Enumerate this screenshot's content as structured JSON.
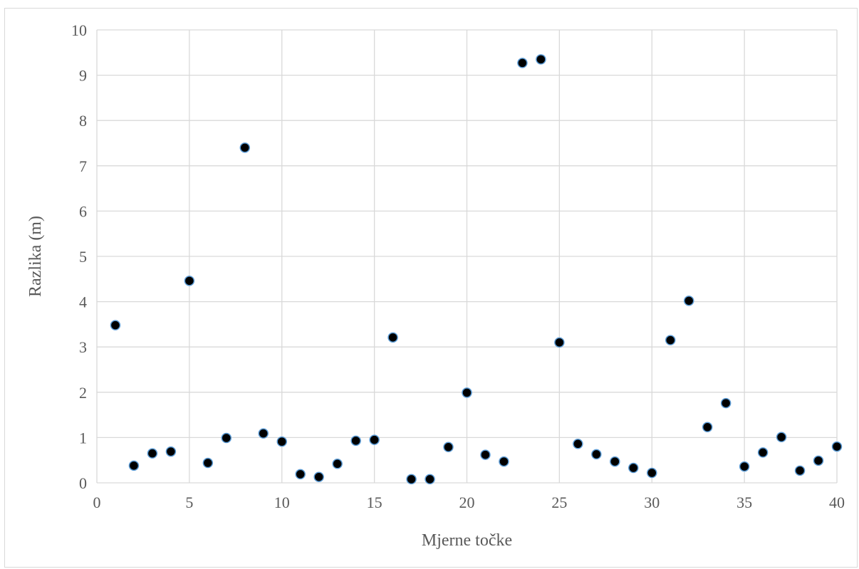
{
  "chart_data": {
    "type": "scatter",
    "xlabel": "Mjerne točke",
    "ylabel": "Razlika (m)",
    "xlim": [
      0,
      40
    ],
    "ylim": [
      0,
      10
    ],
    "x_ticks": [
      0,
      5,
      10,
      15,
      20,
      25,
      30,
      35,
      40
    ],
    "y_ticks": [
      0,
      1,
      2,
      3,
      4,
      5,
      6,
      7,
      8,
      9,
      10
    ],
    "grid": true,
    "legend": "none",
    "marker": {
      "fill": "#000000",
      "edge": "#5b9bd5"
    },
    "x": [
      1,
      2,
      3,
      4,
      5,
      6,
      7,
      8,
      9,
      10,
      11,
      12,
      13,
      14,
      15,
      16,
      17,
      18,
      19,
      20,
      21,
      22,
      23,
      24,
      25,
      26,
      27,
      28,
      29,
      30,
      31,
      32,
      33,
      34,
      35,
      36,
      37,
      38,
      39,
      40
    ],
    "y": [
      3.48,
      0.38,
      0.65,
      0.69,
      4.46,
      0.44,
      0.99,
      7.4,
      1.09,
      0.91,
      0.19,
      0.13,
      0.42,
      0.93,
      0.95,
      3.21,
      0.08,
      0.08,
      0.79,
      1.99,
      0.62,
      0.47,
      9.27,
      9.35,
      3.1,
      0.86,
      0.63,
      0.47,
      0.33,
      0.22,
      3.15,
      4.02,
      1.23,
      1.76,
      0.36,
      0.67,
      1.01,
      0.27,
      0.49,
      0.8
    ]
  }
}
